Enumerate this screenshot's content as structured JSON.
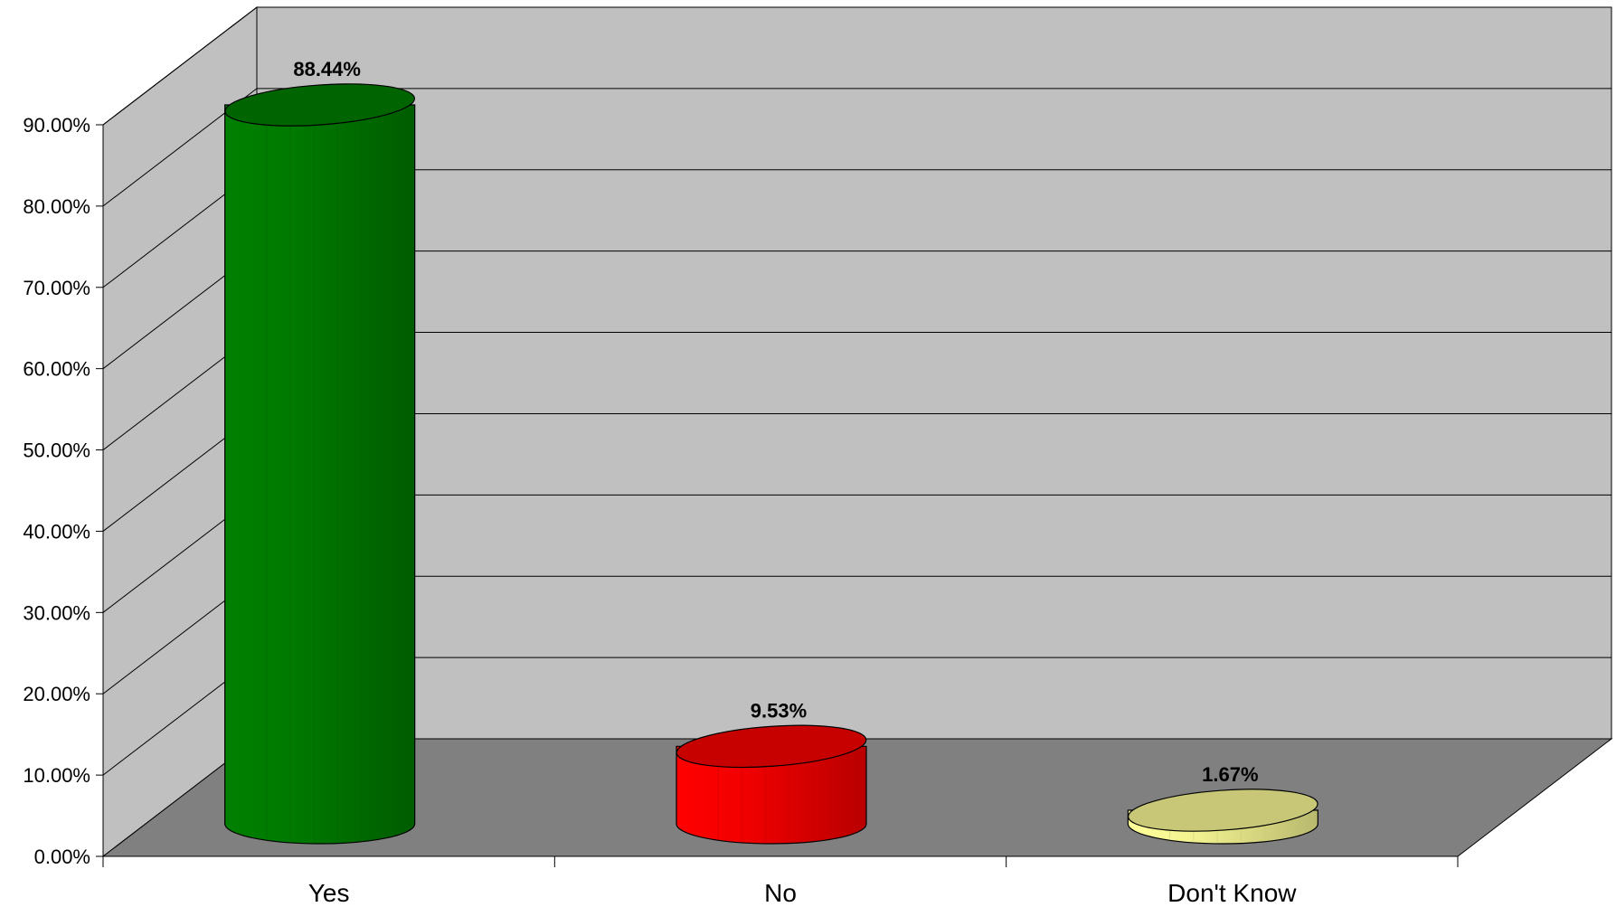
{
  "chart_data": {
    "type": "bar",
    "style": "3d-cylinder",
    "categories": [
      "Yes",
      "No",
      "Don't Know"
    ],
    "values": [
      88.44,
      9.53,
      1.67
    ],
    "data_labels": [
      "88.44%",
      "9.53%",
      "1.67%"
    ],
    "colors": [
      "#008000",
      "#ff0000",
      "#ffff99"
    ],
    "ylim": [
      0,
      90
    ],
    "y_ticks": [
      {
        "value": 0,
        "label": "0.00%"
      },
      {
        "value": 10,
        "label": "10.00%"
      },
      {
        "value": 20,
        "label": "20.00%"
      },
      {
        "value": 30,
        "label": "30.00%"
      },
      {
        "value": 40,
        "label": "40.00%"
      },
      {
        "value": 50,
        "label": "50.00%"
      },
      {
        "value": 60,
        "label": "60.00%"
      },
      {
        "value": 70,
        "label": "70.00%"
      },
      {
        "value": 80,
        "label": "80.00%"
      },
      {
        "value": 90,
        "label": "90.00%"
      }
    ],
    "grid": true,
    "legend": "none",
    "wall_color": "#c0c0c0",
    "floor_color": "#808080"
  }
}
